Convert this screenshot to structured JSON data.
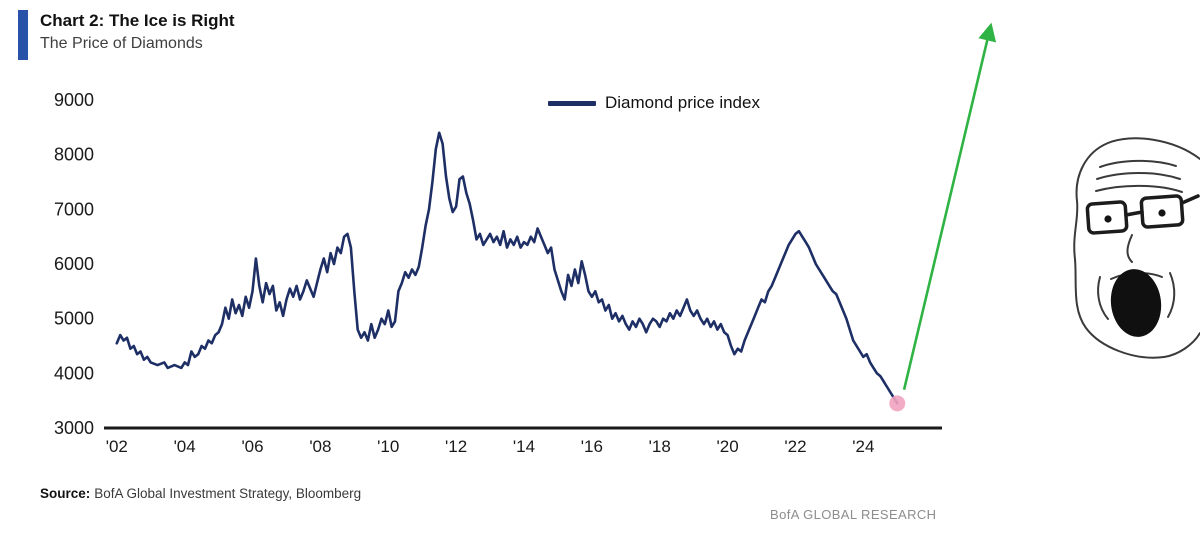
{
  "header": {
    "title": "Chart 2: The Ice is Right",
    "subtitle": "The Price of Diamonds"
  },
  "legend": {
    "label": "Diamond price index"
  },
  "footer": {
    "source_label": "Source:",
    "source_text": "BofA Global Investment Strategy, Bloomberg",
    "branding": "BofA GLOBAL RESEARCH"
  },
  "colors": {
    "line": "#1e2f66",
    "accent_bar": "#2953a8",
    "arrow": "#2eb344",
    "endpoint": "#f2a3c0",
    "axis": "#1a1a1a",
    "tick_text": "#1a1a1a",
    "branding_text": "#8d8d8d"
  },
  "meme": {
    "name": "shocked-wojak-face-with-glasses"
  },
  "chart_data": {
    "type": "line",
    "title": "Chart 2: The Ice is Right",
    "subtitle": "The Price of Diamonds",
    "xlabel": "",
    "ylabel": "",
    "grid": false,
    "legend_position": "top-center",
    "ylim": [
      3000,
      9000
    ],
    "xlim": [
      2001.8,
      2026.2
    ],
    "y_ticks": [
      3000,
      4000,
      5000,
      6000,
      7000,
      8000,
      9000
    ],
    "x_ticks": [
      "'02",
      "'04",
      "'06",
      "'08",
      "'10",
      "'12",
      "'14",
      "'16",
      "'18",
      "'20",
      "'22",
      "'24"
    ],
    "x_tick_values": [
      2002,
      2004,
      2006,
      2008,
      2010,
      2012,
      2014,
      2016,
      2018,
      2020,
      2022,
      2024
    ],
    "series": [
      {
        "name": "Diamond price index",
        "points": [
          [
            2002.0,
            4550
          ],
          [
            2002.1,
            4700
          ],
          [
            2002.2,
            4600
          ],
          [
            2002.3,
            4650
          ],
          [
            2002.4,
            4450
          ],
          [
            2002.5,
            4500
          ],
          [
            2002.6,
            4350
          ],
          [
            2002.7,
            4400
          ],
          [
            2002.8,
            4250
          ],
          [
            2002.9,
            4300
          ],
          [
            2003.0,
            4200
          ],
          [
            2003.2,
            4150
          ],
          [
            2003.4,
            4200
          ],
          [
            2003.5,
            4100
          ],
          [
            2003.7,
            4150
          ],
          [
            2003.9,
            4100
          ],
          [
            2004.0,
            4200
          ],
          [
            2004.1,
            4150
          ],
          [
            2004.2,
            4400
          ],
          [
            2004.3,
            4300
          ],
          [
            2004.4,
            4350
          ],
          [
            2004.5,
            4500
          ],
          [
            2004.6,
            4450
          ],
          [
            2004.7,
            4600
          ],
          [
            2004.8,
            4550
          ],
          [
            2004.9,
            4700
          ],
          [
            2005.0,
            4750
          ],
          [
            2005.1,
            4900
          ],
          [
            2005.2,
            5200
          ],
          [
            2005.3,
            5000
          ],
          [
            2005.4,
            5350
          ],
          [
            2005.5,
            5100
          ],
          [
            2005.6,
            5250
          ],
          [
            2005.7,
            5050
          ],
          [
            2005.8,
            5400
          ],
          [
            2005.9,
            5200
          ],
          [
            2006.0,
            5500
          ],
          [
            2006.1,
            6100
          ],
          [
            2006.2,
            5600
          ],
          [
            2006.3,
            5300
          ],
          [
            2006.4,
            5650
          ],
          [
            2006.5,
            5450
          ],
          [
            2006.6,
            5600
          ],
          [
            2006.7,
            5150
          ],
          [
            2006.8,
            5300
          ],
          [
            2006.9,
            5050
          ],
          [
            2007.0,
            5350
          ],
          [
            2007.1,
            5550
          ],
          [
            2007.2,
            5400
          ],
          [
            2007.3,
            5600
          ],
          [
            2007.4,
            5350
          ],
          [
            2007.5,
            5500
          ],
          [
            2007.6,
            5700
          ],
          [
            2007.7,
            5550
          ],
          [
            2007.8,
            5400
          ],
          [
            2007.9,
            5650
          ],
          [
            2008.0,
            5900
          ],
          [
            2008.1,
            6100
          ],
          [
            2008.2,
            5850
          ],
          [
            2008.3,
            6200
          ],
          [
            2008.4,
            6000
          ],
          [
            2008.5,
            6300
          ],
          [
            2008.6,
            6200
          ],
          [
            2008.7,
            6500
          ],
          [
            2008.8,
            6550
          ],
          [
            2008.9,
            6300
          ],
          [
            2009.0,
            5500
          ],
          [
            2009.1,
            4800
          ],
          [
            2009.2,
            4650
          ],
          [
            2009.3,
            4750
          ],
          [
            2009.4,
            4600
          ],
          [
            2009.5,
            4900
          ],
          [
            2009.6,
            4650
          ],
          [
            2009.7,
            4800
          ],
          [
            2009.8,
            5000
          ],
          [
            2009.9,
            4900
          ],
          [
            2010.0,
            5150
          ],
          [
            2010.1,
            4850
          ],
          [
            2010.2,
            4950
          ],
          [
            2010.3,
            5500
          ],
          [
            2010.4,
            5650
          ],
          [
            2010.5,
            5850
          ],
          [
            2010.6,
            5750
          ],
          [
            2010.7,
            5900
          ],
          [
            2010.8,
            5800
          ],
          [
            2010.9,
            5950
          ],
          [
            2011.0,
            6300
          ],
          [
            2011.1,
            6700
          ],
          [
            2011.2,
            7000
          ],
          [
            2011.3,
            7500
          ],
          [
            2011.4,
            8100
          ],
          [
            2011.5,
            8400
          ],
          [
            2011.6,
            8200
          ],
          [
            2011.7,
            7600
          ],
          [
            2011.8,
            7200
          ],
          [
            2011.9,
            6950
          ],
          [
            2012.0,
            7050
          ],
          [
            2012.1,
            7550
          ],
          [
            2012.2,
            7600
          ],
          [
            2012.3,
            7300
          ],
          [
            2012.4,
            7100
          ],
          [
            2012.5,
            6800
          ],
          [
            2012.6,
            6450
          ],
          [
            2012.7,
            6550
          ],
          [
            2012.8,
            6350
          ],
          [
            2012.9,
            6450
          ],
          [
            2013.0,
            6550
          ],
          [
            2013.1,
            6400
          ],
          [
            2013.2,
            6500
          ],
          [
            2013.3,
            6350
          ],
          [
            2013.4,
            6600
          ],
          [
            2013.5,
            6300
          ],
          [
            2013.6,
            6450
          ],
          [
            2013.7,
            6350
          ],
          [
            2013.8,
            6500
          ],
          [
            2013.9,
            6300
          ],
          [
            2014.0,
            6400
          ],
          [
            2014.1,
            6350
          ],
          [
            2014.2,
            6500
          ],
          [
            2014.3,
            6400
          ],
          [
            2014.4,
            6650
          ],
          [
            2014.5,
            6500
          ],
          [
            2014.6,
            6350
          ],
          [
            2014.7,
            6200
          ],
          [
            2014.8,
            6300
          ],
          [
            2014.9,
            5900
          ],
          [
            2015.0,
            5700
          ],
          [
            2015.1,
            5500
          ],
          [
            2015.2,
            5350
          ],
          [
            2015.3,
            5800
          ],
          [
            2015.4,
            5600
          ],
          [
            2015.5,
            5900
          ],
          [
            2015.6,
            5650
          ],
          [
            2015.7,
            6050
          ],
          [
            2015.8,
            5800
          ],
          [
            2015.9,
            5500
          ],
          [
            2016.0,
            5400
          ],
          [
            2016.1,
            5500
          ],
          [
            2016.2,
            5300
          ],
          [
            2016.3,
            5350
          ],
          [
            2016.4,
            5150
          ],
          [
            2016.5,
            5250
          ],
          [
            2016.6,
            5000
          ],
          [
            2016.7,
            5100
          ],
          [
            2016.8,
            4950
          ],
          [
            2016.9,
            5050
          ],
          [
            2017.0,
            4900
          ],
          [
            2017.1,
            4800
          ],
          [
            2017.2,
            4950
          ],
          [
            2017.3,
            4850
          ],
          [
            2017.4,
            5000
          ],
          [
            2017.5,
            4900
          ],
          [
            2017.6,
            4750
          ],
          [
            2017.7,
            4900
          ],
          [
            2017.8,
            5000
          ],
          [
            2017.9,
            4950
          ],
          [
            2018.0,
            4850
          ],
          [
            2018.1,
            5000
          ],
          [
            2018.2,
            4950
          ],
          [
            2018.3,
            5100
          ],
          [
            2018.4,
            5000
          ],
          [
            2018.5,
            5150
          ],
          [
            2018.6,
            5050
          ],
          [
            2018.7,
            5200
          ],
          [
            2018.8,
            5350
          ],
          [
            2018.9,
            5150
          ],
          [
            2019.0,
            5050
          ],
          [
            2019.1,
            5150
          ],
          [
            2019.2,
            5000
          ],
          [
            2019.3,
            4900
          ],
          [
            2019.4,
            5000
          ],
          [
            2019.5,
            4850
          ],
          [
            2019.6,
            4950
          ],
          [
            2019.7,
            4800
          ],
          [
            2019.8,
            4900
          ],
          [
            2019.9,
            4750
          ],
          [
            2020.0,
            4700
          ],
          [
            2020.1,
            4500
          ],
          [
            2020.2,
            4350
          ],
          [
            2020.3,
            4450
          ],
          [
            2020.4,
            4400
          ],
          [
            2020.5,
            4600
          ],
          [
            2020.6,
            4750
          ],
          [
            2020.7,
            4900
          ],
          [
            2020.8,
            5050
          ],
          [
            2020.9,
            5200
          ],
          [
            2021.0,
            5350
          ],
          [
            2021.1,
            5300
          ],
          [
            2021.2,
            5500
          ],
          [
            2021.3,
            5600
          ],
          [
            2021.4,
            5750
          ],
          [
            2021.5,
            5900
          ],
          [
            2021.6,
            6050
          ],
          [
            2021.7,
            6200
          ],
          [
            2021.8,
            6350
          ],
          [
            2021.9,
            6450
          ],
          [
            2022.0,
            6550
          ],
          [
            2022.1,
            6600
          ],
          [
            2022.2,
            6500
          ],
          [
            2022.3,
            6400
          ],
          [
            2022.4,
            6300
          ],
          [
            2022.5,
            6150
          ],
          [
            2022.6,
            6000
          ],
          [
            2022.7,
            5900
          ],
          [
            2022.8,
            5800
          ],
          [
            2022.9,
            5700
          ],
          [
            2023.0,
            5600
          ],
          [
            2023.1,
            5500
          ],
          [
            2023.2,
            5450
          ],
          [
            2023.3,
            5300
          ],
          [
            2023.4,
            5150
          ],
          [
            2023.5,
            5000
          ],
          [
            2023.6,
            4800
          ],
          [
            2023.7,
            4600
          ],
          [
            2023.8,
            4500
          ],
          [
            2023.9,
            4400
          ],
          [
            2024.0,
            4300
          ],
          [
            2024.1,
            4350
          ],
          [
            2024.2,
            4200
          ],
          [
            2024.3,
            4100
          ],
          [
            2024.4,
            4000
          ],
          [
            2024.5,
            3950
          ],
          [
            2024.6,
            3850
          ],
          [
            2024.7,
            3750
          ],
          [
            2024.8,
            3650
          ],
          [
            2024.9,
            3550
          ],
          [
            2025.0,
            3450
          ]
        ]
      }
    ],
    "annotations": [
      {
        "type": "marker",
        "x": 2025.0,
        "y": 3450,
        "note": "latest value highlighted with pink dot"
      },
      {
        "type": "arrow",
        "from": [
          2025.2,
          3700
        ],
        "to": [
          2027.75,
          10350
        ],
        "note": "green meme arrow pointing up"
      }
    ]
  }
}
